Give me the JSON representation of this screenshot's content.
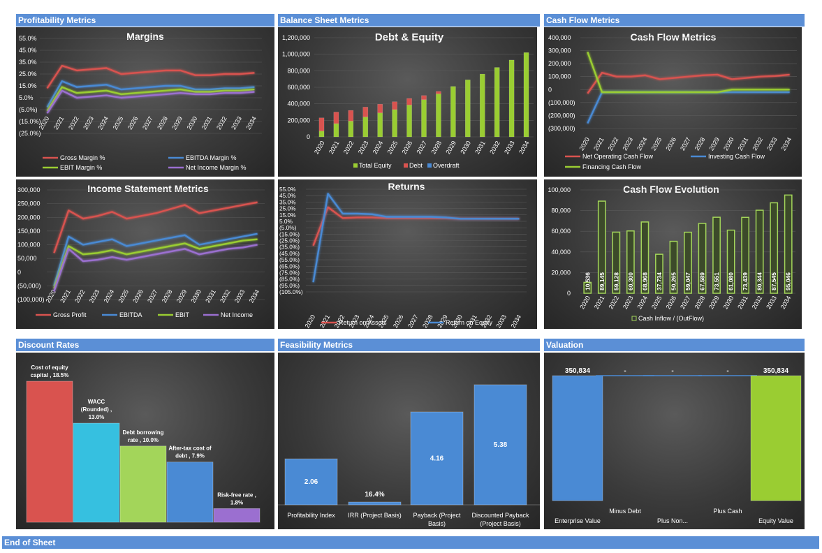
{
  "sections": {
    "profitability": "Profitability Metrics",
    "balance_sheet": "Balance Sheet Metrics",
    "cash_flow": "Cash Flow Metrics",
    "discount_rates": "Discount Rates",
    "feasibility": "Feasibility Metrics",
    "valuation": "Valuation",
    "end": "End of Sheet"
  },
  "colors": {
    "red": "#d9534f",
    "blue": "#4a8ad4",
    "green": "#9acd32",
    "purple": "#9b6fd0",
    "cyan": "#36c0e0",
    "light_green": "#a3d55a"
  },
  "chart_data": [
    {
      "id": "margins",
      "type": "line",
      "title": "Margins",
      "x": [
        "2020",
        "2021",
        "2022",
        "2023",
        "2024",
        "2025",
        "2026",
        "2027",
        "2028",
        "2029",
        "2030",
        "2031",
        "2032",
        "2033",
        "2034"
      ],
      "y_ticks": [
        "55.0%",
        "45.0%",
        "35.0%",
        "25.0%",
        "15.0%",
        "5.0%",
        "(5.0%)",
        "(15.0%)",
        "(25.0%)"
      ],
      "ylim": [
        -25,
        55
      ],
      "legend_position": "bottom",
      "series": [
        {
          "name": "Gross Margin %",
          "color": "red",
          "values": [
            13,
            32,
            28,
            29,
            30,
            25,
            26,
            27,
            28,
            28,
            24,
            24,
            25,
            25,
            26
          ]
        },
        {
          "name": "EBITDA Margin %",
          "color": "blue",
          "values": [
            -3,
            19,
            14,
            15,
            16,
            12,
            13,
            14,
            15,
            15,
            12,
            12,
            13,
            13,
            14
          ]
        },
        {
          "name": "EBIT Margin %",
          "color": "green",
          "values": [
            -6,
            14,
            9,
            10,
            11,
            8,
            9,
            10,
            11,
            12,
            10,
            10,
            11,
            11,
            12
          ]
        },
        {
          "name": "Net Income Margin %",
          "color": "purple",
          "values": [
            -8,
            11,
            5,
            6,
            7,
            5,
            6,
            7,
            8,
            9,
            8,
            8,
            9,
            9,
            10
          ]
        }
      ]
    },
    {
      "id": "debt_equity",
      "type": "bar",
      "title": "Debt & Equity",
      "categories": [
        "2020",
        "2021",
        "2022",
        "2023",
        "2024",
        "2025",
        "2026",
        "2027",
        "2028",
        "2029",
        "2030",
        "2031",
        "2032",
        "2033",
        "2034"
      ],
      "y_ticks": [
        "1,200,000",
        "1,000,000",
        "800,000",
        "600,000",
        "400,000",
        "200,000",
        "0"
      ],
      "ylim": [
        0,
        1200000
      ],
      "stacked": true,
      "legend_position": "bottom",
      "series": [
        {
          "name": "Total Equity",
          "color": "green",
          "values": [
            70000,
            160000,
            190000,
            240000,
            290000,
            330000,
            385000,
            450000,
            520000,
            610000,
            690000,
            760000,
            840000,
            930000,
            1020000
          ]
        },
        {
          "name": "Debt",
          "color": "red",
          "values": [
            160000,
            140000,
            130000,
            120000,
            105000,
            95000,
            80000,
            50000,
            30000,
            0,
            0,
            0,
            0,
            0,
            0
          ]
        },
        {
          "name": "Overdraft",
          "color": "blue",
          "values": [
            0,
            0,
            0,
            0,
            0,
            0,
            0,
            0,
            0,
            0,
            0,
            0,
            0,
            0,
            0
          ]
        }
      ]
    },
    {
      "id": "cash_flow_metrics",
      "type": "line",
      "title": "Cash Flow Metrics",
      "x": [
        "2020",
        "2021",
        "2022",
        "2023",
        "2024",
        "2025",
        "2026",
        "2027",
        "2028",
        "2029",
        "2030",
        "2031",
        "2032",
        "2033",
        "2034"
      ],
      "y_ticks": [
        "400,000",
        "300,000",
        "200,000",
        "100,000",
        "0",
        "(100,000)",
        "(200,000)",
        "(300,000)"
      ],
      "ylim": [
        -300000,
        400000
      ],
      "legend_position": "bottom",
      "series": [
        {
          "name": "Net Operating Cash Flow",
          "color": "red",
          "values": [
            -30000,
            130000,
            100000,
            100000,
            110000,
            80000,
            90000,
            100000,
            110000,
            115000,
            80000,
            90000,
            100000,
            105000,
            115000
          ]
        },
        {
          "name": "Investing Cash Flow",
          "color": "blue",
          "values": [
            -260000,
            -20000,
            -20000,
            -20000,
            -20000,
            -20000,
            -20000,
            -20000,
            -20000,
            -20000,
            -20000,
            -20000,
            -20000,
            -20000,
            -20000
          ]
        },
        {
          "name": "Financing Cash Flow",
          "color": "green",
          "values": [
            290000,
            -20000,
            -20000,
            -20000,
            -20000,
            -20000,
            -20000,
            -20000,
            -20000,
            -20000,
            0,
            0,
            0,
            0,
            0
          ]
        }
      ]
    },
    {
      "id": "income_statement",
      "type": "line",
      "title": "Income Statement Metrics",
      "x": [
        "2020",
        "2021",
        "2022",
        "2023",
        "2024",
        "2025",
        "2026",
        "2027",
        "2028",
        "2029",
        "2030",
        "2031",
        "2032",
        "2033",
        "2034"
      ],
      "y_ticks": [
        "300,000",
        "250,000",
        "200,000",
        "150,000",
        "100,000",
        "50,000",
        "0",
        "(50,000)",
        "(100,000)"
      ],
      "ylim": [
        -100000,
        300000
      ],
      "legend_position": "bottom",
      "series": [
        {
          "name": "Gross Profit",
          "color": "red",
          "values": [
            70000,
            225000,
            195000,
            205000,
            220000,
            195000,
            205000,
            215000,
            230000,
            245000,
            215000,
            225000,
            235000,
            245000,
            255000
          ]
        },
        {
          "name": "EBITDA",
          "color": "blue",
          "values": [
            -50000,
            130000,
            100000,
            110000,
            120000,
            95000,
            105000,
            115000,
            125000,
            135000,
            100000,
            110000,
            120000,
            130000,
            140000
          ]
        },
        {
          "name": "EBIT",
          "color": "green",
          "values": [
            -60000,
            95000,
            65000,
            70000,
            80000,
            65000,
            75000,
            85000,
            95000,
            105000,
            85000,
            95000,
            105000,
            115000,
            120000
          ]
        },
        {
          "name": "Net Income",
          "color": "purple",
          "values": [
            -70000,
            85000,
            40000,
            45000,
            55000,
            45000,
            55000,
            65000,
            75000,
            85000,
            65000,
            75000,
            85000,
            90000,
            100000
          ]
        }
      ]
    },
    {
      "id": "returns",
      "type": "line",
      "title": "Returns",
      "x": [
        "2020",
        "2021",
        "2022",
        "2023",
        "2024",
        "2025",
        "2026",
        "2027",
        "2028",
        "2029",
        "2030",
        "2031",
        "2032",
        "2033",
        "2034"
      ],
      "y_ticks": [
        "55.0%",
        "45.0%",
        "35.0%",
        "25.0%",
        "15.0%",
        "5.0%",
        "(5.0%)",
        "(15.0%)",
        "(25.0%)",
        "(35.0%)",
        "(45.0%)",
        "(55.0%)",
        "(65.0%)",
        "(75.0%)",
        "(85.0%)",
        "(95.0%)",
        "(105.0%)"
      ],
      "ylim": [
        -105,
        55
      ],
      "legend_position": "bottom",
      "series": [
        {
          "name": "Return on Assets",
          "color": "red",
          "values": [
            -33,
            27,
            10,
            11,
            11,
            10,
            10,
            10,
            10,
            10,
            9,
            9,
            9,
            9,
            9
          ]
        },
        {
          "name": "Return on Equity",
          "color": "blue",
          "values": [
            -90,
            48,
            17,
            17,
            16,
            12,
            12,
            12,
            12,
            11,
            9,
            9,
            9,
            9,
            9
          ]
        }
      ]
    },
    {
      "id": "cash_flow_evolution",
      "type": "bar",
      "title": "Cash Flow Evolution",
      "categories": [
        "2020",
        "2021",
        "2022",
        "2023",
        "2024",
        "2025",
        "2026",
        "2027",
        "2028",
        "2029",
        "2030",
        "2031",
        "2032",
        "2033",
        "2034"
      ],
      "values": [
        10536,
        89145,
        59128,
        60300,
        68968,
        37734,
        50265,
        59047,
        67589,
        73551,
        61080,
        73439,
        80344,
        87545,
        95046
      ],
      "labels": [
        "10,536",
        "89,145",
        "59,128",
        "60,300",
        "68,968",
        "37,734",
        "50,265",
        "59,047",
        "67,589",
        "73,551",
        "61,080",
        "73,439",
        "80,344",
        "87,545",
        "95,046"
      ],
      "y_ticks": [
        "100,000",
        "80,000",
        "60,000",
        "40,000",
        "20,000",
        "0"
      ],
      "ylim": [
        0,
        100000
      ],
      "legend": "Cash Inflow / (OutFlow)",
      "legend_position": "bottom"
    },
    {
      "id": "discount_rates",
      "type": "bar",
      "categories": [
        "Cost of equity capital",
        "WACC (Rounded)",
        "Debt borrowing rate",
        "After-tax cost of debt",
        "Risk-free rate"
      ],
      "values": [
        18.5,
        13.0,
        10.0,
        7.9,
        1.8
      ],
      "labels": [
        "Cost of equity capital , 18.5%",
        "WACC (Rounded) , 13.0%",
        "Debt borrowing rate , 10.0%",
        "After-tax cost of debt , 7.9%",
        "Risk-free rate , 1.8%"
      ],
      "colors": [
        "red",
        "cyan",
        "light_green",
        "blue",
        "purple"
      ]
    },
    {
      "id": "feasibility",
      "type": "bar",
      "categories": [
        "Profitability Index",
        "IRR (Project Basis)",
        "Payback  (Project Basis)",
        "Discounted Payback (Project Basis)"
      ],
      "values": [
        2.06,
        0.164,
        4.16,
        5.38
      ],
      "labels": [
        "2.06",
        "16.4%",
        "4.16",
        "5.38"
      ]
    },
    {
      "id": "valuation",
      "type": "bar",
      "categories": [
        "Enterprise Value",
        "Minus Debt",
        "Plus Non...",
        "Plus Cash",
        "Equity Value"
      ],
      "values": [
        350834,
        0,
        0,
        0,
        350834
      ],
      "labels": [
        "350,834",
        "-",
        "-",
        "-",
        "350,834"
      ],
      "colors": [
        "blue",
        "blue",
        "blue",
        "blue",
        "green"
      ]
    }
  ]
}
